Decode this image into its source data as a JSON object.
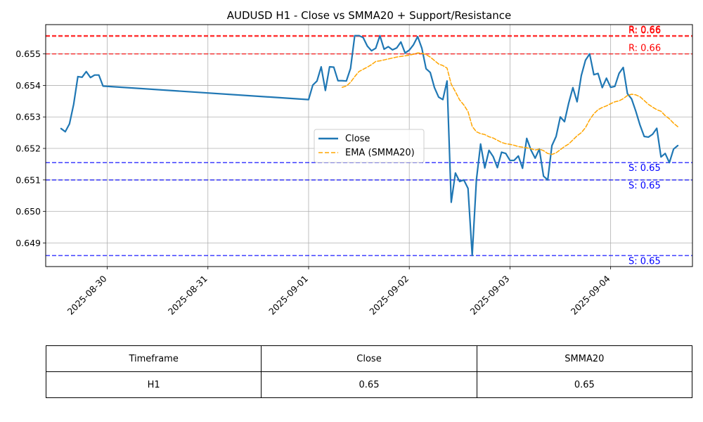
{
  "chart_data": {
    "type": "line",
    "title": "AUDUSD H1 - Close vs SMMA20 + Support/Resistance",
    "xlabel": "",
    "ylabel": "",
    "x_ticks": [
      "2025-08-30",
      "2025-08-31",
      "2025-09-01",
      "2025-09-02",
      "2025-09-03",
      "2025-09-04"
    ],
    "y_ticks": [
      "0.649",
      "0.650",
      "0.651",
      "0.652",
      "0.653",
      "0.654",
      "0.655"
    ],
    "ylim": [
      0.64825,
      0.65593
    ],
    "grid": true,
    "legend_position": "center-right",
    "legend": [
      "Close",
      "EMA (SMMA20)"
    ],
    "series": [
      {
        "name": "Close",
        "color": "#1f77b4",
        "style": "solid",
        "points": [
          [
            "2025-08-29 13:00",
            0.65263
          ],
          [
            "2025-08-29 14:00",
            0.65253
          ],
          [
            "2025-08-29 15:00",
            0.65278
          ],
          [
            "2025-08-29 16:00",
            0.6534
          ],
          [
            "2025-08-29 17:00",
            0.65428
          ],
          [
            "2025-08-29 18:00",
            0.65426
          ],
          [
            "2025-08-29 19:00",
            0.65444
          ],
          [
            "2025-08-29 20:00",
            0.65425
          ],
          [
            "2025-08-29 21:00",
            0.65433
          ],
          [
            "2025-08-29 22:00",
            0.65433
          ],
          [
            "2025-08-29 23:00",
            0.65398
          ],
          [
            "2025-09-01 00:00",
            0.65355
          ],
          [
            "2025-09-01 01:00",
            0.65401
          ],
          [
            "2025-09-01 02:00",
            0.65414
          ],
          [
            "2025-09-01 03:00",
            0.65459
          ],
          [
            "2025-09-01 04:00",
            0.65384
          ],
          [
            "2025-09-01 05:00",
            0.65459
          ],
          [
            "2025-09-01 06:00",
            0.65458
          ],
          [
            "2025-09-01 07:00",
            0.65415
          ],
          [
            "2025-09-01 08:00",
            0.65415
          ],
          [
            "2025-09-01 09:00",
            0.65414
          ],
          [
            "2025-09-01 10:00",
            0.65454
          ],
          [
            "2025-09-01 11:00",
            0.65558
          ],
          [
            "2025-09-01 12:00",
            0.65558
          ],
          [
            "2025-09-01 13:00",
            0.65552
          ],
          [
            "2025-09-01 14:00",
            0.65525
          ],
          [
            "2025-09-01 15:00",
            0.6551
          ],
          [
            "2025-09-01 16:00",
            0.65518
          ],
          [
            "2025-09-01 17:00",
            0.65558
          ],
          [
            "2025-09-01 18:00",
            0.65515
          ],
          [
            "2025-09-01 19:00",
            0.65523
          ],
          [
            "2025-09-01 20:00",
            0.65513
          ],
          [
            "2025-09-01 21:00",
            0.65519
          ],
          [
            "2025-09-01 22:00",
            0.65538
          ],
          [
            "2025-09-01 23:00",
            0.65503
          ],
          [
            "2025-09-02 00:00",
            0.65512
          ],
          [
            "2025-09-02 01:00",
            0.65529
          ],
          [
            "2025-09-02 02:00",
            0.65555
          ],
          [
            "2025-09-02 03:00",
            0.65518
          ],
          [
            "2025-09-02 04:00",
            0.65453
          ],
          [
            "2025-09-02 05:00",
            0.65441
          ],
          [
            "2025-09-02 06:00",
            0.65393
          ],
          [
            "2025-09-02 07:00",
            0.65363
          ],
          [
            "2025-09-02 08:00",
            0.65355
          ],
          [
            "2025-09-02 09:00",
            0.65414
          ],
          [
            "2025-09-02 10:00",
            0.65029
          ],
          [
            "2025-09-02 11:00",
            0.65122
          ],
          [
            "2025-09-02 12:00",
            0.65095
          ],
          [
            "2025-09-02 13:00",
            0.651
          ],
          [
            "2025-09-02 14:00",
            0.65073
          ],
          [
            "2025-09-02 15:00",
            0.6486
          ],
          [
            "2025-09-02 16:00",
            0.651
          ],
          [
            "2025-09-02 17:00",
            0.65214
          ],
          [
            "2025-09-02 18:00",
            0.65138
          ],
          [
            "2025-09-02 19:00",
            0.65194
          ],
          [
            "2025-09-02 20:00",
            0.65174
          ],
          [
            "2025-09-02 21:00",
            0.65139
          ],
          [
            "2025-09-02 22:00",
            0.65188
          ],
          [
            "2025-09-02 23:00",
            0.65184
          ],
          [
            "2025-09-03 00:00",
            0.65162
          ],
          [
            "2025-09-03 01:00",
            0.65162
          ],
          [
            "2025-09-03 02:00",
            0.65176
          ],
          [
            "2025-09-03 03:00",
            0.65137
          ],
          [
            "2025-09-03 04:00",
            0.65232
          ],
          [
            "2025-09-03 05:00",
            0.65195
          ],
          [
            "2025-09-03 06:00",
            0.65169
          ],
          [
            "2025-09-03 07:00",
            0.65198
          ],
          [
            "2025-09-03 08:00",
            0.65112
          ],
          [
            "2025-09-03 09:00",
            0.651
          ],
          [
            "2025-09-03 10:00",
            0.65209
          ],
          [
            "2025-09-03 11:00",
            0.65238
          ],
          [
            "2025-09-03 12:00",
            0.653
          ],
          [
            "2025-09-03 13:00",
            0.65285
          ],
          [
            "2025-09-03 14:00",
            0.65344
          ],
          [
            "2025-09-03 15:00",
            0.65393
          ],
          [
            "2025-09-03 16:00",
            0.65348
          ],
          [
            "2025-09-03 17:00",
            0.65431
          ],
          [
            "2025-09-03 18:00",
            0.6548
          ],
          [
            "2025-09-03 19:00",
            0.655
          ],
          [
            "2025-09-03 20:00",
            0.65434
          ],
          [
            "2025-09-03 21:00",
            0.65438
          ],
          [
            "2025-09-03 22:00",
            0.65393
          ],
          [
            "2025-09-03 23:00",
            0.65423
          ],
          [
            "2025-09-04 00:00",
            0.65394
          ],
          [
            "2025-09-04 01:00",
            0.65397
          ],
          [
            "2025-09-04 02:00",
            0.65438
          ],
          [
            "2025-09-04 03:00",
            0.65457
          ],
          [
            "2025-09-04 04:00",
            0.65374
          ],
          [
            "2025-09-04 05:00",
            0.65357
          ],
          [
            "2025-09-04 06:00",
            0.65318
          ],
          [
            "2025-09-04 07:00",
            0.65274
          ],
          [
            "2025-09-04 08:00",
            0.65238
          ],
          [
            "2025-09-04 09:00",
            0.65236
          ],
          [
            "2025-09-04 10:00",
            0.65245
          ],
          [
            "2025-09-04 11:00",
            0.65264
          ],
          [
            "2025-09-04 12:00",
            0.65173
          ],
          [
            "2025-09-04 13:00",
            0.65184
          ],
          [
            "2025-09-04 14:00",
            0.65155
          ],
          [
            "2025-09-04 15:00",
            0.65198
          ],
          [
            "2025-09-04 16:00",
            0.65209
          ]
        ]
      },
      {
        "name": "EMA (SMMA20)",
        "color": "#ffa500",
        "style": "dashed",
        "points": [
          [
            "2025-09-01 08:00",
            0.65394
          ],
          [
            "2025-09-01 09:00",
            0.65398
          ],
          [
            "2025-09-01 10:00",
            0.6541
          ],
          [
            "2025-09-01 11:00",
            0.65428
          ],
          [
            "2025-09-01 12:00",
            0.65444
          ],
          [
            "2025-09-01 13:00",
            0.65451
          ],
          [
            "2025-09-01 14:00",
            0.65458
          ],
          [
            "2025-09-01 15:00",
            0.65466
          ],
          [
            "2025-09-01 16:00",
            0.65476
          ],
          [
            "2025-09-01 17:00",
            0.65478
          ],
          [
            "2025-09-01 18:00",
            0.65481
          ],
          [
            "2025-09-01 19:00",
            0.65484
          ],
          [
            "2025-09-01 20:00",
            0.65487
          ],
          [
            "2025-09-01 21:00",
            0.6549
          ],
          [
            "2025-09-01 22:00",
            0.65492
          ],
          [
            "2025-09-01 23:00",
            0.65494
          ],
          [
            "2025-09-02 00:00",
            0.65496
          ],
          [
            "2025-09-02 01:00",
            0.65499
          ],
          [
            "2025-09-02 02:00",
            0.65503
          ],
          [
            "2025-09-02 03:00",
            0.65502
          ],
          [
            "2025-09-02 04:00",
            0.65498
          ],
          [
            "2025-09-02 05:00",
            0.6549
          ],
          [
            "2025-09-02 06:00",
            0.65479
          ],
          [
            "2025-09-02 07:00",
            0.65468
          ],
          [
            "2025-09-02 08:00",
            0.65463
          ],
          [
            "2025-09-02 09:00",
            0.65455
          ],
          [
            "2025-09-02 10:00",
            0.65404
          ],
          [
            "2025-09-02 11:00",
            0.6538
          ],
          [
            "2025-09-02 12:00",
            0.65354
          ],
          [
            "2025-09-02 13:00",
            0.65338
          ],
          [
            "2025-09-02 14:00",
            0.65317
          ],
          [
            "2025-09-02 15:00",
            0.6527
          ],
          [
            "2025-09-02 16:00",
            0.65253
          ],
          [
            "2025-09-02 17:00",
            0.65247
          ],
          [
            "2025-09-02 18:00",
            0.65244
          ],
          [
            "2025-09-02 19:00",
            0.65237
          ],
          [
            "2025-09-02 20:00",
            0.65233
          ],
          [
            "2025-09-02 21:00",
            0.65226
          ],
          [
            "2025-09-02 22:00",
            0.65219
          ],
          [
            "2025-09-02 23:00",
            0.65215
          ],
          [
            "2025-09-03 00:00",
            0.65213
          ],
          [
            "2025-09-03 01:00",
            0.6521
          ],
          [
            "2025-09-03 02:00",
            0.65206
          ],
          [
            "2025-09-03 03:00",
            0.65204
          ],
          [
            "2025-09-03 04:00",
            0.65202
          ],
          [
            "2025-09-03 05:00",
            0.65199
          ],
          [
            "2025-09-03 06:00",
            0.65195
          ],
          [
            "2025-09-03 07:00",
            0.65198
          ],
          [
            "2025-09-03 08:00",
            0.65193
          ],
          [
            "2025-09-03 09:00",
            0.65184
          ],
          [
            "2025-09-03 10:00",
            0.65181
          ],
          [
            "2025-09-03 11:00",
            0.65186
          ],
          [
            "2025-09-03 12:00",
            0.65196
          ],
          [
            "2025-09-03 13:00",
            0.65206
          ],
          [
            "2025-09-03 14:00",
            0.65214
          ],
          [
            "2025-09-03 15:00",
            0.65227
          ],
          [
            "2025-09-03 16:00",
            0.6524
          ],
          [
            "2025-09-03 17:00",
            0.6525
          ],
          [
            "2025-09-03 18:00",
            0.65266
          ],
          [
            "2025-09-03 19:00",
            0.65291
          ],
          [
            "2025-09-03 20:00",
            0.6531
          ],
          [
            "2025-09-03 21:00",
            0.65323
          ],
          [
            "2025-09-03 22:00",
            0.6533
          ],
          [
            "2025-09-03 23:00",
            0.65335
          ],
          [
            "2025-09-04 00:00",
            0.65342
          ],
          [
            "2025-09-04 01:00",
            0.65348
          ],
          [
            "2025-09-04 02:00",
            0.65351
          ],
          [
            "2025-09-04 03:00",
            0.65358
          ],
          [
            "2025-09-04 04:00",
            0.65368
          ],
          [
            "2025-09-04 05:00",
            0.65372
          ],
          [
            "2025-09-04 06:00",
            0.6537
          ],
          [
            "2025-09-04 07:00",
            0.65364
          ],
          [
            "2025-09-04 08:00",
            0.65352
          ],
          [
            "2025-09-04 09:00",
            0.6534
          ],
          [
            "2025-09-04 10:00",
            0.65331
          ],
          [
            "2025-09-04 11:00",
            0.65323
          ],
          [
            "2025-09-04 12:00",
            0.65318
          ],
          [
            "2025-09-04 13:00",
            0.65304
          ],
          [
            "2025-09-04 14:00",
            0.65294
          ],
          [
            "2025-09-04 15:00",
            0.6528
          ],
          [
            "2025-09-04 16:00",
            0.65269
          ]
        ]
      }
    ],
    "hlines": [
      {
        "value": 0.65558,
        "label": "R: 0.66",
        "color": "#ff0000",
        "style": "dashed"
      },
      {
        "value": 0.65556,
        "label": "R: 0.66",
        "color": "#ff0000",
        "style": "dashed"
      },
      {
        "value": 0.655,
        "label": "R: 0.66",
        "color": "#ff0000",
        "style": "dashed"
      },
      {
        "value": 0.65155,
        "label": "S: 0.65",
        "color": "#0000ff",
        "style": "dashed"
      },
      {
        "value": 0.651,
        "label": "S: 0.65",
        "color": "#0000ff",
        "style": "dashed"
      },
      {
        "value": 0.6486,
        "label": "S: 0.65",
        "color": "#0000ff",
        "style": "dashed"
      }
    ]
  },
  "table": {
    "headers": [
      "Timeframe",
      "Close",
      "SMMA20"
    ],
    "rows": [
      [
        "H1",
        "0.65",
        "0.65"
      ]
    ]
  }
}
